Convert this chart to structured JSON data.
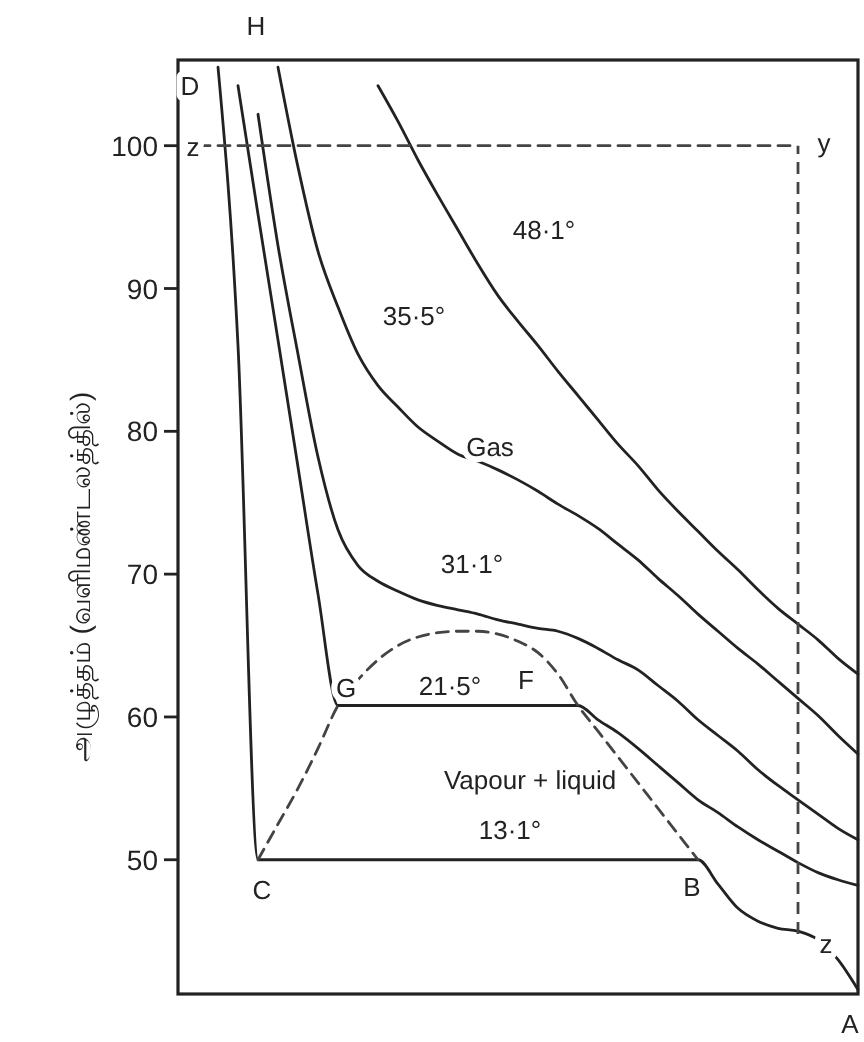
{
  "chart_data": {
    "type": "line",
    "ylabel": "அழுத்தம்  (வளிமண்டலத்தில்)",
    "categories": [
      null,
      null,
      null,
      null,
      null,
      null,
      null,
      null,
      null,
      null,
      null,
      null,
      null,
      null,
      null,
      null,
      null,
      null,
      null,
      null,
      null,
      null,
      null,
      null,
      null,
      null,
      null,
      null,
      null,
      null,
      null,
      null,
      null,
      null,
      null
    ],
    "ylim": [
      40.6,
      106
    ],
    "yticks": [
      50,
      60,
      70,
      80,
      90,
      100
    ],
    "series": [
      {
        "name": "48·1°",
        "color": "#222222",
        "values": [
          null,
          null,
          null,
          null,
          null,
          null,
          null,
          null,
          null,
          null,
          104.2,
          101.7,
          99.0,
          96.5,
          94.1,
          91.7,
          89.5,
          87.7,
          86.0,
          84.2,
          82.5,
          80.8,
          79.1,
          77.6,
          75.9,
          74.4,
          73.0,
          71.6,
          70.3,
          68.9,
          67.6,
          66.5,
          65.4,
          64.1,
          63.0
        ]
      },
      {
        "name": "35·5°",
        "color": "#222222",
        "values": [
          null,
          null,
          null,
          null,
          null,
          105.5,
          98.5,
          92.6,
          88.7,
          85.4,
          83.2,
          81.7,
          80.3,
          79.3,
          78.4,
          77.9,
          77.3,
          76.6,
          75.8,
          74.9,
          74.1,
          73.2,
          72.1,
          71.0,
          69.7,
          68.5,
          67.2,
          66.0,
          64.8,
          63.7,
          62.5,
          61.3,
          60.1,
          58.7,
          57.4
        ]
      },
      {
        "name": "31·1°",
        "color": "#222222",
        "values": [
          null,
          null,
          null,
          null,
          102.2,
          93.0,
          85.4,
          78.2,
          73.1,
          70.6,
          69.5,
          68.8,
          68.2,
          67.8,
          67.5,
          67.2,
          66.8,
          66.5,
          66.2,
          66.0,
          65.5,
          64.8,
          64.0,
          63.3,
          62.2,
          61.1,
          59.8,
          58.7,
          57.6,
          56.3,
          55.2,
          54.2,
          53.2,
          52.2,
          51.4
        ]
      },
      {
        "name": "21·5°",
        "color": "#222222",
        "values": [
          null,
          null,
          null,
          104.2,
          95.2,
          86.4,
          77.5,
          68.6,
          60.8,
          60.8,
          60.8,
          60.8,
          60.8,
          60.8,
          60.8,
          60.8,
          60.8,
          60.8,
          60.8,
          60.8,
          60.8,
          59.8,
          58.9,
          57.8,
          56.6,
          55.4,
          54.2,
          53.3,
          52.3,
          51.4,
          50.6,
          49.8,
          49.1,
          48.6,
          48.2
        ]
      },
      {
        "name": "13·1°",
        "color": "#222222",
        "values": [
          null,
          null,
          105.5,
          86.0,
          50,
          50,
          50,
          50,
          50,
          50,
          50,
          50,
          50,
          50,
          50,
          50,
          50,
          50,
          50,
          50,
          50,
          50,
          50,
          50,
          50,
          50,
          50,
          48.3,
          46.6,
          45.7,
          45.2,
          45.0,
          44.4,
          43.0,
          40.9
        ]
      },
      {
        "color": "#444444",
        "line_style": "dashed",
        "values": [
          null,
          null,
          null,
          null,
          50,
          52.5,
          55,
          57.8,
          60.8,
          62.6,
          64,
          65,
          65.6,
          65.9,
          66.0,
          66.0,
          65.8,
          65.3,
          64.5,
          63.0,
          60.8,
          59,
          57.2,
          55.4,
          53.6,
          51.8,
          50,
          null,
          null,
          null,
          null,
          null,
          null,
          null,
          null
        ]
      },
      {
        "color": "#444444",
        "line_style": "dashed",
        "values": [
          null,
          100,
          100,
          100,
          100,
          100,
          100,
          100,
          100,
          100,
          100,
          100,
          100,
          100,
          100,
          100,
          100,
          100,
          100,
          100,
          100,
          100,
          100,
          100,
          100,
          100,
          100,
          100,
          100,
          100,
          100,
          100,
          null,
          null,
          null
        ],
        "errors": [
          null,
          null,
          null,
          null,
          null,
          null,
          null,
          null,
          null,
          null,
          null,
          null,
          null,
          null,
          null,
          null,
          null,
          null,
          null,
          null,
          null,
          null,
          null,
          null,
          null,
          null,
          null,
          null,
          null,
          null,
          null,
          [
            44.8,
            100
          ],
          null,
          null,
          null
        ]
      }
    ],
    "annotations": [
      "H",
      "D",
      "z",
      "y",
      "G",
      "F",
      "Vapour + liquid",
      "C",
      "B",
      "z",
      "A",
      "Gas"
    ]
  }
}
